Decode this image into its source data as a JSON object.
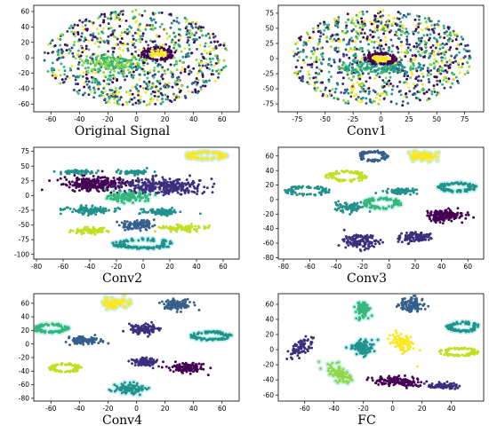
{
  "palette": {
    "purple": "#440154",
    "indigo": "#3b2f7e",
    "blue": "#355f8d",
    "teal": "#21918c",
    "green": "#35b779",
    "lime": "#90d743",
    "yellow": "#fde725",
    "pale_lime": "#c2df23",
    "glow": "#9ee6e6"
  },
  "chart_data": [
    {
      "id": "original",
      "type": "scatter",
      "title": "Original Signal",
      "xticks": [
        -60,
        -40,
        -20,
        0,
        20,
        40,
        60
      ],
      "yticks": [
        -60,
        -40,
        -20,
        0,
        20,
        40,
        60
      ],
      "xlim": [
        -72,
        72
      ],
      "ylim": [
        -70,
        68
      ],
      "clusters": [
        {
          "kind": "ellipse-fill",
          "cx": 0,
          "cy": 0,
          "rx": 65,
          "ry": 62,
          "n": 900,
          "colors": [
            "purple",
            "indigo",
            "blue",
            "teal",
            "green",
            "lime",
            "yellow"
          ]
        },
        {
          "kind": "blob",
          "cx": -18,
          "cy": -8,
          "rx": 22,
          "ry": 12,
          "n": 160,
          "colors": [
            "green",
            "lime"
          ]
        },
        {
          "kind": "ring",
          "cx": 15,
          "cy": 5,
          "rx": 10,
          "ry": 8,
          "n": 80,
          "colors": [
            "purple"
          ]
        },
        {
          "kind": "blob",
          "cx": 15,
          "cy": 5,
          "rx": 5,
          "ry": 4,
          "n": 50,
          "colors": [
            "yellow"
          ]
        }
      ]
    },
    {
      "id": "conv1",
      "type": "scatter",
      "title": "Conv1",
      "xticks": [
        -75,
        -50,
        -25,
        0,
        25,
        50,
        75
      ],
      "yticks": [
        -75,
        -50,
        -25,
        0,
        25,
        50,
        75
      ],
      "xlim": [
        -92,
        92
      ],
      "ylim": [
        -88,
        88
      ],
      "clusters": [
        {
          "kind": "ellipse-fill",
          "cx": 0,
          "cy": 0,
          "rx": 82,
          "ry": 80,
          "n": 950,
          "colors": [
            "purple",
            "indigo",
            "blue",
            "teal",
            "green",
            "lime",
            "yellow"
          ]
        },
        {
          "kind": "blob",
          "cx": 0,
          "cy": -15,
          "rx": 40,
          "ry": 12,
          "n": 150,
          "colors": [
            "green",
            "teal"
          ]
        },
        {
          "kind": "ring",
          "cx": 0,
          "cy": 0,
          "rx": 13,
          "ry": 9,
          "n": 80,
          "colors": [
            "purple"
          ]
        },
        {
          "kind": "blob",
          "cx": 0,
          "cy": 0,
          "rx": 7,
          "ry": 4,
          "n": 50,
          "colors": [
            "yellow"
          ]
        }
      ]
    },
    {
      "id": "conv2",
      "type": "scatter",
      "title": "Conv2",
      "xticks": [
        -80,
        -60,
        -40,
        -20,
        0,
        20,
        40,
        60
      ],
      "yticks": [
        -100,
        -75,
        -50,
        -25,
        0,
        25,
        50,
        75
      ],
      "xlim": [
        -82,
        72
      ],
      "ylim": [
        -108,
        82
      ],
      "clusters": [
        {
          "kind": "ring",
          "cx": 47,
          "cy": 68,
          "rx": 14,
          "ry": 6,
          "n": 120,
          "colors": [
            "yellow"
          ],
          "glow": true
        },
        {
          "kind": "blob",
          "cx": -50,
          "cy": 40,
          "rx": 13,
          "ry": 4,
          "n": 60,
          "colors": [
            "teal"
          ]
        },
        {
          "kind": "blob",
          "cx": -5,
          "cy": 40,
          "rx": 13,
          "ry": 4,
          "n": 60,
          "colors": [
            "teal"
          ]
        },
        {
          "kind": "blob",
          "cx": -35,
          "cy": 20,
          "rx": 24,
          "ry": 12,
          "n": 260,
          "colors": [
            "purple"
          ]
        },
        {
          "kind": "blob",
          "cx": 15,
          "cy": 15,
          "rx": 32,
          "ry": 14,
          "n": 300,
          "colors": [
            "indigo"
          ]
        },
        {
          "kind": "blob",
          "cx": -12,
          "cy": -2,
          "rx": 14,
          "ry": 8,
          "n": 120,
          "colors": [
            "green"
          ],
          "glow": true
        },
        {
          "kind": "blob",
          "cx": -40,
          "cy": -25,
          "rx": 18,
          "ry": 6,
          "n": 110,
          "colors": [
            "teal"
          ]
        },
        {
          "kind": "blob",
          "cx": 15,
          "cy": -28,
          "rx": 13,
          "ry": 6,
          "n": 90,
          "colors": [
            "teal"
          ]
        },
        {
          "kind": "blob",
          "cx": -5,
          "cy": -50,
          "rx": 14,
          "ry": 8,
          "n": 100,
          "colors": [
            "blue"
          ]
        },
        {
          "kind": "blob",
          "cx": -40,
          "cy": -60,
          "rx": 14,
          "ry": 5,
          "n": 70,
          "colors": [
            "pale_lime"
          ]
        },
        {
          "kind": "blob",
          "cx": 30,
          "cy": -55,
          "rx": 18,
          "ry": 6,
          "n": 90,
          "colors": [
            "pale_lime"
          ]
        },
        {
          "kind": "ring",
          "cx": 0,
          "cy": -82,
          "rx": 20,
          "ry": 8,
          "n": 120,
          "colors": [
            "teal"
          ],
          "glow": true
        }
      ]
    },
    {
      "id": "conv3",
      "type": "scatter",
      "title": "Conv3",
      "xticks": [
        -80,
        -60,
        -40,
        -20,
        0,
        20,
        40,
        60
      ],
      "yticks": [
        -80,
        -60,
        -40,
        -20,
        0,
        20,
        40,
        60
      ],
      "xlim": [
        -84,
        72
      ],
      "ylim": [
        -82,
        72
      ],
      "clusters": [
        {
          "kind": "ring",
          "cx": -12,
          "cy": 60,
          "rx": 10,
          "ry": 7,
          "n": 90,
          "colors": [
            "blue"
          ]
        },
        {
          "kind": "blob",
          "cx": 25,
          "cy": 60,
          "rx": 10,
          "ry": 7,
          "n": 100,
          "colors": [
            "yellow"
          ],
          "glow": true
        },
        {
          "kind": "ring",
          "cx": -32,
          "cy": 32,
          "rx": 14,
          "ry": 7,
          "n": 100,
          "colors": [
            "pale_lime"
          ]
        },
        {
          "kind": "ring",
          "cx": 52,
          "cy": 17,
          "rx": 13,
          "ry": 6,
          "n": 100,
          "colors": [
            "teal"
          ],
          "glow": true
        },
        {
          "kind": "ring",
          "cx": -62,
          "cy": 12,
          "rx": 15,
          "ry": 6,
          "n": 90,
          "colors": [
            "teal"
          ]
        },
        {
          "kind": "blob",
          "cx": 10,
          "cy": 12,
          "rx": 12,
          "ry": 4,
          "n": 70,
          "colors": [
            "teal"
          ]
        },
        {
          "kind": "ring",
          "cx": -5,
          "cy": -5,
          "rx": 13,
          "ry": 7,
          "n": 100,
          "colors": [
            "green"
          ],
          "glow": true
        },
        {
          "kind": "blob",
          "cx": -30,
          "cy": -10,
          "rx": 11,
          "ry": 6,
          "n": 80,
          "colors": [
            "teal"
          ]
        },
        {
          "kind": "blob",
          "cx": 42,
          "cy": -22,
          "rx": 15,
          "ry": 8,
          "n": 160,
          "colors": [
            "purple"
          ]
        },
        {
          "kind": "blob",
          "cx": -22,
          "cy": -58,
          "rx": 12,
          "ry": 9,
          "n": 120,
          "colors": [
            "indigo"
          ]
        },
        {
          "kind": "blob",
          "cx": 20,
          "cy": -52,
          "rx": 12,
          "ry": 7,
          "n": 110,
          "colors": [
            "indigo"
          ]
        }
      ]
    },
    {
      "id": "conv4",
      "type": "scatter",
      "title": "Conv4",
      "xticks": [
        -60,
        -40,
        -20,
        0,
        20,
        40,
        60
      ],
      "yticks": [
        -80,
        -60,
        -40,
        -20,
        0,
        20,
        40,
        60
      ],
      "xlim": [
        -72,
        72
      ],
      "ylim": [
        -84,
        74
      ],
      "clusters": [
        {
          "kind": "blob",
          "cx": -15,
          "cy": 60,
          "rx": 9,
          "ry": 7,
          "n": 100,
          "colors": [
            "yellow"
          ],
          "glow": true
        },
        {
          "kind": "blob",
          "cx": 28,
          "cy": 58,
          "rx": 10,
          "ry": 7,
          "n": 110,
          "colors": [
            "blue"
          ]
        },
        {
          "kind": "ring",
          "cx": -60,
          "cy": 23,
          "rx": 11,
          "ry": 6,
          "n": 100,
          "colors": [
            "green"
          ],
          "glow": true
        },
        {
          "kind": "blob",
          "cx": 5,
          "cy": 22,
          "rx": 10,
          "ry": 7,
          "n": 110,
          "colors": [
            "indigo"
          ]
        },
        {
          "kind": "ring",
          "cx": 52,
          "cy": 12,
          "rx": 13,
          "ry": 6,
          "n": 100,
          "colors": [
            "teal"
          ],
          "glow": true
        },
        {
          "kind": "blob",
          "cx": -37,
          "cy": 5,
          "rx": 12,
          "ry": 6,
          "n": 100,
          "colors": [
            "blue"
          ]
        },
        {
          "kind": "ring",
          "cx": -50,
          "cy": -35,
          "rx": 10,
          "ry": 6,
          "n": 90,
          "colors": [
            "pale_lime"
          ]
        },
        {
          "kind": "blob",
          "cx": 5,
          "cy": -27,
          "rx": 9,
          "ry": 6,
          "n": 90,
          "colors": [
            "indigo"
          ]
        },
        {
          "kind": "blob",
          "cx": 35,
          "cy": -35,
          "rx": 12,
          "ry": 7,
          "n": 120,
          "colors": [
            "purple"
          ]
        },
        {
          "kind": "blob",
          "cx": -5,
          "cy": -66,
          "rx": 10,
          "ry": 7,
          "n": 110,
          "colors": [
            "teal"
          ],
          "glow": true
        }
      ]
    },
    {
      "id": "fc",
      "type": "scatter",
      "title": "FC",
      "xticks": [
        -60,
        -40,
        -20,
        0,
        20,
        40
      ],
      "yticks": [
        -60,
        -40,
        -20,
        0,
        20,
        40,
        60
      ],
      "xlim": [
        -78,
        62
      ],
      "ylim": [
        -68,
        74
      ],
      "clusters": [
        {
          "kind": "blob",
          "cx": -20,
          "cy": 52,
          "rx": 5,
          "ry": 12,
          "n": 90,
          "colors": [
            "green"
          ],
          "glow": true
        },
        {
          "kind": "blob",
          "cx": 13,
          "cy": 60,
          "rx": 8,
          "ry": 9,
          "n": 100,
          "colors": [
            "blue"
          ]
        },
        {
          "kind": "ring",
          "cx": 48,
          "cy": 30,
          "rx": 10,
          "ry": 6,
          "n": 90,
          "colors": [
            "teal"
          ],
          "glow": true
        },
        {
          "kind": "blob",
          "cx": -62,
          "cy": 4,
          "rx": 6,
          "ry": 15,
          "n": 80,
          "colors": [
            "indigo"
          ],
          "tilt": -0.5
        },
        {
          "kind": "blob",
          "cx": 7,
          "cy": 10,
          "rx": 6,
          "ry": 14,
          "n": 90,
          "colors": [
            "yellow"
          ],
          "tilt": 0.35
        },
        {
          "kind": "blob",
          "cx": -20,
          "cy": 3,
          "rx": 8,
          "ry": 10,
          "n": 90,
          "colors": [
            "teal"
          ],
          "glow": true
        },
        {
          "kind": "ring",
          "cx": 45,
          "cy": -3,
          "rx": 12,
          "ry": 5,
          "n": 90,
          "colors": [
            "pale_lime"
          ]
        },
        {
          "kind": "blob",
          "cx": -37,
          "cy": -32,
          "rx": 6,
          "ry": 13,
          "n": 90,
          "colors": [
            "lime"
          ],
          "tilt": 0.5,
          "glow": true
        },
        {
          "kind": "blob",
          "cx": 5,
          "cy": -42,
          "rx": 17,
          "ry": 6,
          "n": 150,
          "colors": [
            "purple"
          ],
          "tilt": -0.15
        },
        {
          "kind": "blob",
          "cx": 35,
          "cy": -48,
          "rx": 13,
          "ry": 4,
          "n": 80,
          "colors": [
            "indigo"
          ]
        }
      ]
    }
  ]
}
